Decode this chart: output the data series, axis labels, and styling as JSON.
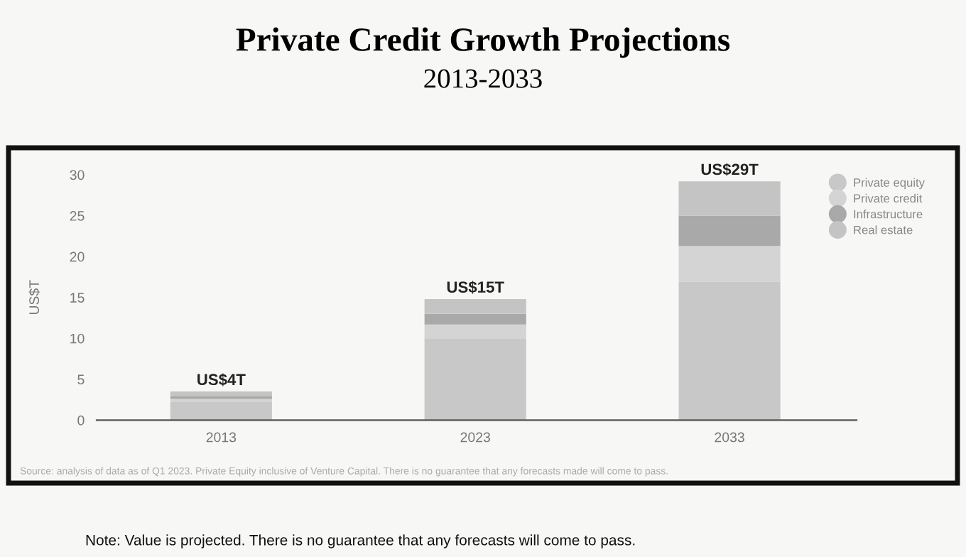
{
  "chart_data": {
    "type": "bar",
    "title": "Private Credit Growth Projections",
    "subtitle": "2013-2033",
    "ylabel": "US$T",
    "categories": [
      "2013",
      "2023",
      "2033"
    ],
    "stacked": true,
    "series": [
      {
        "name": "Private equity",
        "color": "#c8c8c8",
        "values": [
          2.2,
          10.0,
          16.9
        ]
      },
      {
        "name": "Private credit",
        "color": "#d4d4d4",
        "values": [
          0.4,
          1.7,
          4.4
        ]
      },
      {
        "name": "Infrastructure",
        "color": "#a9a9a9",
        "values": [
          0.3,
          1.3,
          3.7
        ]
      },
      {
        "name": "Real estate",
        "color": "#c4c4c4",
        "values": [
          0.6,
          1.8,
          4.2
        ]
      }
    ],
    "totals": [
      "US$4T",
      "US$15T",
      "US$29T"
    ],
    "ylim": [
      0,
      30
    ],
    "yticks": [
      0,
      5,
      10,
      15,
      20,
      25,
      30
    ],
    "grid": false,
    "legend": "top right",
    "marker": "circle",
    "annotations": [
      "Source: analysis of data as of Q1 2023. Private Equity inclusive of Venture Capital. There is no guarantee that any forecasts made will come to pass.",
      "Note: Value is projected. There is no guarantee that any forecasts will come to pass."
    ]
  }
}
